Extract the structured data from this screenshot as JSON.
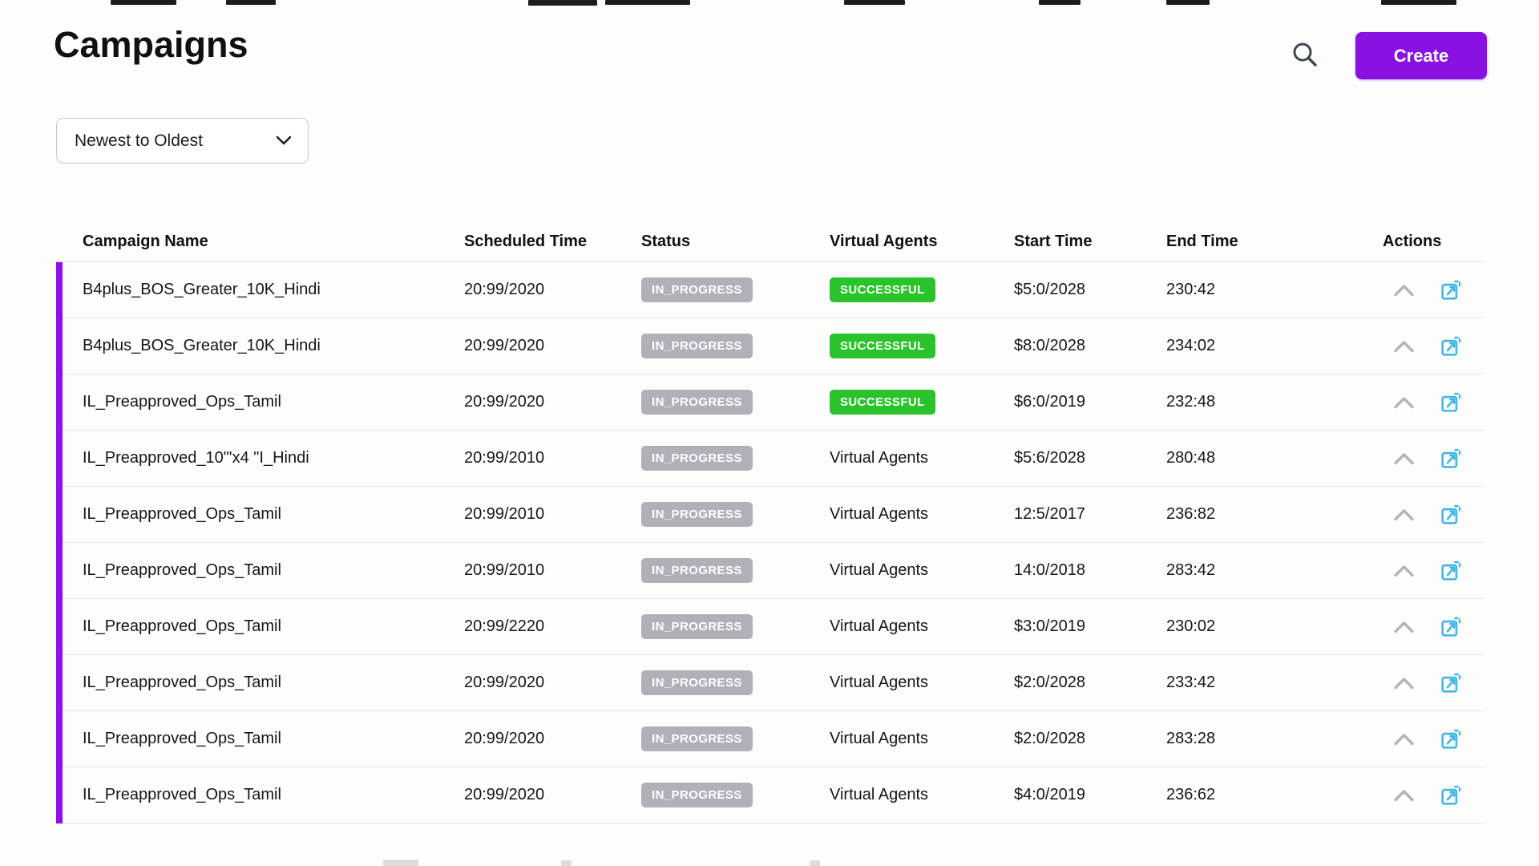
{
  "page": {
    "title": "Campaigns"
  },
  "header": {
    "search_icon": "magnifier-icon",
    "create_label": "Create"
  },
  "sort": {
    "value": "Newest to Oldest",
    "chevron_icon": "chevron-down-icon"
  },
  "colors": {
    "accent_purple": "#8912E3",
    "badge_green": "#2BC32B",
    "badge_gray": "#AEB2B8",
    "action_icon_blue": "#3FB6E3"
  },
  "table": {
    "columns": [
      "Campaign Name",
      "Scheduled Time",
      "Status",
      "Virtual Agents",
      "Start Time",
      "End Time",
      "Actions"
    ],
    "rows": [
      {
        "name": "B4plus_BOS_Greater_10K_Hindi",
        "scheduled": "20:99/2020",
        "status": "IN_PROGRESS",
        "virtual_agents": "SUCCESSFUL",
        "virtual_agents_is_badge": true,
        "start": "$5:0/2028",
        "end": "230:42"
      },
      {
        "name": "B4plus_BOS_Greater_10K_Hindi",
        "scheduled": "20:99/2020",
        "status": "IN_PROGRESS",
        "virtual_agents": "SUCCESSFUL",
        "virtual_agents_is_badge": true,
        "start": "$8:0/2028",
        "end": "234:02"
      },
      {
        "name": "IL_Preapproved_Ops_Tamil",
        "scheduled": "20:99/2020",
        "status": "IN_PROGRESS",
        "virtual_agents": "SUCCESSFUL",
        "virtual_agents_is_badge": true,
        "start": "$6:0/2019",
        "end": "232:48"
      },
      {
        "name": "IL_Preapproved_10\"'x4 \"I_Hindi",
        "scheduled": "20:99/2010",
        "status": "IN_PROGRESS",
        "virtual_agents": "Virtual Agents",
        "virtual_agents_is_badge": false,
        "start": "$5:6/2028",
        "end": "280:48"
      },
      {
        "name": "IL_Preapproved_Ops_Tamil",
        "scheduled": "20:99/2010",
        "status": "IN_PROGRESS",
        "virtual_agents": "Virtual Agents",
        "virtual_agents_is_badge": false,
        "start": "12:5/2017",
        "end": "236:82"
      },
      {
        "name": "IL_Preapproved_Ops_Tamil",
        "scheduled": "20:99/2010",
        "status": "IN_PROGRESS",
        "virtual_agents": "Virtual Agents",
        "virtual_agents_is_badge": false,
        "start": "14:0/2018",
        "end": "283:42"
      },
      {
        "name": "IL_Preapproved_Ops_Tamil",
        "scheduled": "20:99/2220",
        "status": "IN_PROGRESS",
        "virtual_agents": "Virtual Agents",
        "virtual_agents_is_badge": false,
        "start": "$3:0/2019",
        "end": "230:02"
      },
      {
        "name": "IL_Preapproved_Ops_Tamil",
        "scheduled": "20:99/2020",
        "status": "IN_PROGRESS",
        "virtual_agents": "Virtual Agents",
        "virtual_agents_is_badge": false,
        "start": "$2:0/2028",
        "end": "233:42"
      },
      {
        "name": "IL_Preapproved_Ops_Tamil",
        "scheduled": "20:99/2020",
        "status": "IN_PROGRESS",
        "virtual_agents": "Virtual Agents",
        "virtual_agents_is_badge": false,
        "start": "$2:0/2028",
        "end": "283:28"
      },
      {
        "name": "IL_Preapproved_Ops_Tamil",
        "scheduled": "20:99/2020",
        "status": "IN_PROGRESS",
        "virtual_agents": "Virtual Agents",
        "virtual_agents_is_badge": false,
        "start": "$4:0/2019",
        "end": "236:62"
      }
    ],
    "action_icons": [
      "chevron-up-icon",
      "open-in-new-icon"
    ]
  }
}
